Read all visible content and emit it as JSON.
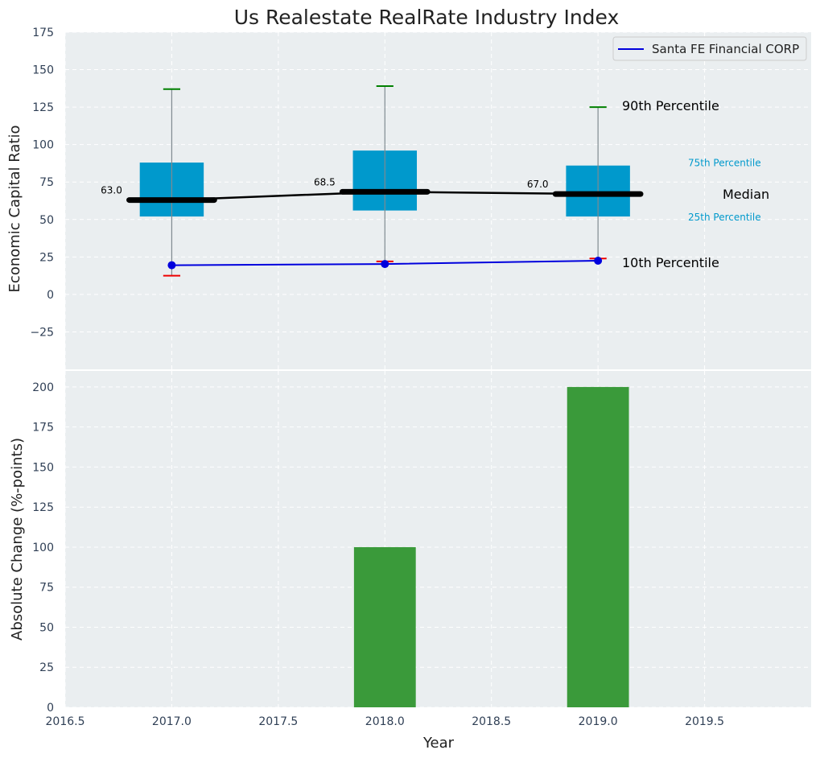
{
  "chart_data": [
    {
      "type": "box",
      "title": "Us Realestate RealRate Industry Index",
      "ylabel": "Economic Capital Ratio",
      "xlim": [
        2016.5,
        2020.0
      ],
      "ylim": [
        -50,
        175
      ],
      "yticks": [
        -25,
        0,
        25,
        50,
        75,
        100,
        125,
        150,
        175
      ],
      "ytick_labels": [
        "−25",
        "0",
        "25",
        "50",
        "75",
        "100",
        "125",
        "150",
        "175"
      ],
      "grid": true,
      "legend": {
        "placement": "top-right",
        "entries": [
          "Santa FE Financial CORP"
        ]
      },
      "boxes": [
        {
          "x": 2017.0,
          "p10": 12.5,
          "p25": 52,
          "median": 63.0,
          "median_label": "63.0",
          "p75": 88,
          "p90": 137
        },
        {
          "x": 2018.0,
          "p10": 22,
          "p25": 56,
          "median": 68.5,
          "median_label": "68.5",
          "p75": 96,
          "p90": 139
        },
        {
          "x": 2019.0,
          "p10": 24,
          "p25": 52,
          "median": 67.0,
          "median_label": "67.0",
          "p75": 86,
          "p90": 125
        }
      ],
      "series": [
        {
          "name": "Santa FE Financial CORP",
          "x": [
            2017.0,
            2018.0,
            2019.0
          ],
          "values": [
            19.5,
            20.3,
            22.5
          ],
          "color": "#0000dd"
        }
      ],
      "annotations": {
        "p90": "90th Percentile",
        "p75": "75th Percentile",
        "median": "Median",
        "p25": "25th Percentile",
        "p10": "10th Percentile"
      }
    },
    {
      "type": "bar",
      "xlabel": "Year",
      "ylabel": "Absolute Change (%-points)",
      "xlim": [
        2016.5,
        2020.0
      ],
      "ylim": [
        0,
        210
      ],
      "xticks": [
        2016.5,
        2017.0,
        2017.5,
        2018.0,
        2018.5,
        2019.0,
        2019.5
      ],
      "xtick_labels": [
        "2016.5",
        "2017.0",
        "2017.5",
        "2018.0",
        "2018.5",
        "2019.0",
        "2019.5"
      ],
      "yticks": [
        0,
        25,
        50,
        75,
        100,
        125,
        150,
        175,
        200
      ],
      "ytick_labels": [
        "0",
        "25",
        "50",
        "75",
        "100",
        "125",
        "150",
        "175",
        "200"
      ],
      "grid": true,
      "x": [
        2018.0,
        2019.0
      ],
      "values": [
        100,
        200
      ]
    }
  ],
  "colors": {
    "plot_bg": "#eaeef0",
    "box": "#0099cc",
    "median": "#000000",
    "p90_cap": "#008000",
    "p10_cap": "#ee0000",
    "bar": "#3a9a3a",
    "tick_text": "#2f3f55",
    "annotation_p": "#0099cc"
  }
}
